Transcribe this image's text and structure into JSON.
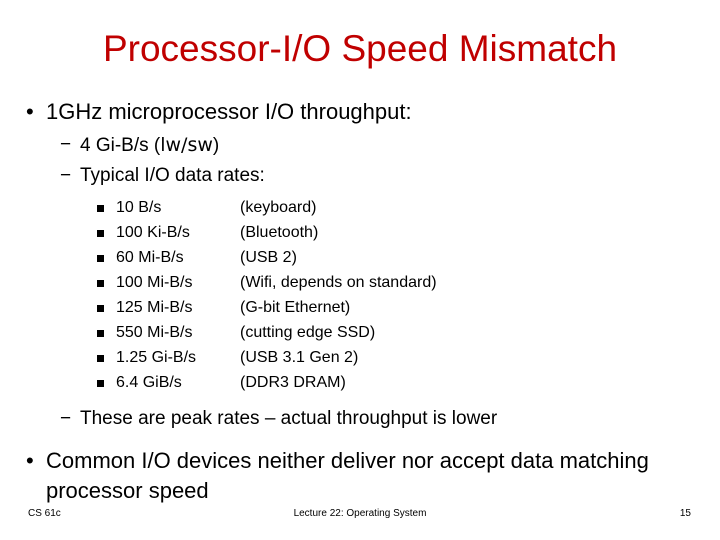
{
  "title": "Processor-I/O Speed Mismatch",
  "bullets": {
    "main1": "1GHz microprocessor I/O throughput:",
    "sub1_prefix": "4 Gi-B/s (",
    "sub1_code": "lw/sw",
    "sub1_suffix": ")",
    "sub2": "Typical I/O data rates:",
    "rates": [
      {
        "value": "10 B/s",
        "device": "(keyboard)"
      },
      {
        "value": "100 Ki-B/s",
        "device": "(Bluetooth)"
      },
      {
        "value": "60 Mi-B/s",
        "device": "(USB 2)"
      },
      {
        "value": "100 Mi-B/s",
        "device": "(Wifi, depends on standard)"
      },
      {
        "value": "125 Mi-B/s",
        "device": "(G-bit Ethernet)"
      },
      {
        "value": "550 Mi-B/s",
        "device": "(cutting edge SSD)"
      },
      {
        "value": "1.25 Gi-B/s",
        "device": "(USB 3.1 Gen 2)"
      },
      {
        "value": "6.4 GiB/s",
        "device": "(DDR3 DRAM)"
      }
    ],
    "sub3": "These are peak rates – actual throughput is lower",
    "main2": "Common I/O devices neither deliver nor accept data matching processor speed"
  },
  "footer": {
    "left": "CS 61c",
    "center": "Lecture 22: Operating System",
    "right": "15"
  }
}
